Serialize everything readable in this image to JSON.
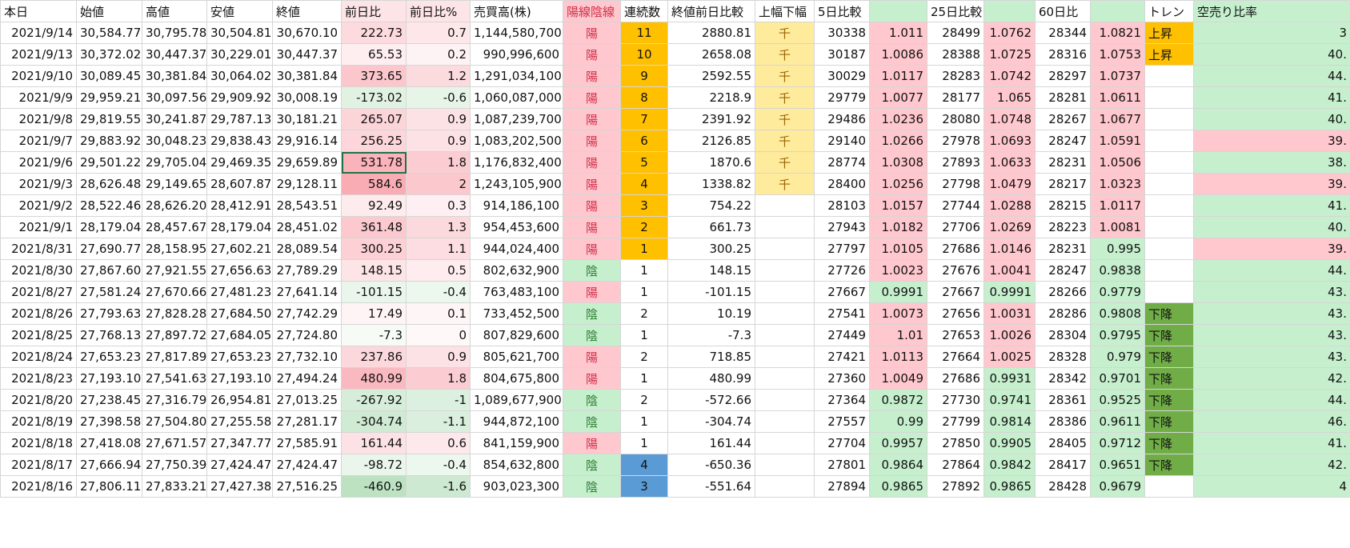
{
  "table": {
    "header": [
      "本日",
      "始値",
      "高値",
      "安値",
      "終値",
      "前日比",
      "前日比%",
      "売買高(株)",
      "陽線陰線",
      "連続数",
      "終値前日比較",
      "上幅下幅",
      "5日比較",
      null,
      "25日比較",
      null,
      "60日比",
      null,
      "トレン",
      "空売り比率"
    ],
    "rows": [
      [
        "2021/9/14",
        "30,584.77",
        "30,795.78",
        "30,504.81",
        "30,670.10",
        "222.73",
        "0.7",
        "1,144,580,700",
        "陽",
        "11",
        "2880.81",
        "千",
        "30338",
        "1.011",
        "28499",
        "1.0762",
        "28344",
        "1.0821",
        "上昇",
        "3"
      ],
      [
        "2021/9/13",
        "30,372.02",
        "30,447.37",
        "30,229.01",
        "30,447.37",
        "65.53",
        "0.2",
        "990,996,600",
        "陽",
        "10",
        "2658.08",
        "千",
        "30187",
        "1.0086",
        "28388",
        "1.0725",
        "28316",
        "1.0753",
        "上昇",
        "40."
      ],
      [
        "2021/9/10",
        "30,089.45",
        "30,381.84",
        "30,064.02",
        "30,381.84",
        "373.65",
        "1.2",
        "1,291,034,100",
        "陽",
        "9",
        "2592.55",
        "千",
        "30029",
        "1.0117",
        "28283",
        "1.0742",
        "28297",
        "1.0737",
        null,
        "44."
      ],
      [
        "2021/9/9",
        "29,959.21",
        "30,097.56",
        "29,909.92",
        "30,008.19",
        "-173.02",
        "-0.6",
        "1,060,087,000",
        "陽",
        "8",
        "2218.9",
        "千",
        "29779",
        "1.0077",
        "28177",
        "1.065",
        "28281",
        "1.0611",
        null,
        "41."
      ],
      [
        "2021/9/8",
        "29,819.55",
        "30,241.87",
        "29,787.13",
        "30,181.21",
        "265.07",
        "0.9",
        "1,087,239,700",
        "陽",
        "7",
        "2391.92",
        "千",
        "29486",
        "1.0236",
        "28080",
        "1.0748",
        "28267",
        "1.0677",
        null,
        "40."
      ],
      [
        "2021/9/7",
        "29,883.92",
        "30,048.23",
        "29,838.43",
        "29,916.14",
        "256.25",
        "0.9",
        "1,083,202,500",
        "陽",
        "6",
        "2126.85",
        "千",
        "29140",
        "1.0266",
        "27978",
        "1.0693",
        "28247",
        "1.0591",
        null,
        "39."
      ],
      [
        "2021/9/6",
        "29,501.22",
        "29,705.04",
        "29,469.35",
        "29,659.89",
        "531.78",
        "1.8",
        "1,176,832,400",
        "陽",
        "5",
        "1870.6",
        "千",
        "28774",
        "1.0308",
        "27893",
        "1.0633",
        "28231",
        "1.0506",
        null,
        "38."
      ],
      [
        "2021/9/3",
        "28,626.48",
        "29,149.65",
        "28,607.87",
        "29,128.11",
        "584.6",
        "2",
        "1,243,105,900",
        "陽",
        "4",
        "1338.82",
        "千",
        "28400",
        "1.0256",
        "27798",
        "1.0479",
        "28217",
        "1.0323",
        null,
        "39."
      ],
      [
        "2021/9/2",
        "28,522.46",
        "28,626.20",
        "28,412.91",
        "28,543.51",
        "92.49",
        "0.3",
        "914,186,100",
        "陽",
        "3",
        "754.22",
        null,
        "28103",
        "1.0157",
        "27744",
        "1.0288",
        "28215",
        "1.0117",
        null,
        "41."
      ],
      [
        "2021/9/1",
        "28,179.04",
        "28,457.67",
        "28,179.04",
        "28,451.02",
        "361.48",
        "1.3",
        "954,453,600",
        "陽",
        "2",
        "661.73",
        null,
        "27943",
        "1.0182",
        "27706",
        "1.0269",
        "28223",
        "1.0081",
        null,
        "40."
      ],
      [
        "2021/8/31",
        "27,690.77",
        "28,158.95",
        "27,602.21",
        "28,089.54",
        "300.25",
        "1.1",
        "944,024,400",
        "陽",
        "1",
        "300.25",
        null,
        "27797",
        "1.0105",
        "27686",
        "1.0146",
        "28231",
        "0.995",
        null,
        "39."
      ],
      [
        "2021/8/30",
        "27,867.60",
        "27,921.55",
        "27,656.63",
        "27,789.29",
        "148.15",
        "0.5",
        "802,632,900",
        "陰",
        "1",
        "148.15",
        null,
        "27726",
        "1.0023",
        "27676",
        "1.0041",
        "28247",
        "0.9838",
        null,
        "44."
      ],
      [
        "2021/8/27",
        "27,581.24",
        "27,670.66",
        "27,481.23",
        "27,641.14",
        "-101.15",
        "-0.4",
        "763,483,100",
        "陽",
        "1",
        "-101.15",
        null,
        "27667",
        "0.9991",
        "27667",
        "0.9991",
        "28266",
        "0.9779",
        null,
        "43."
      ],
      [
        "2021/8/26",
        "27,793.63",
        "27,828.28",
        "27,684.50",
        "27,742.29",
        "17.49",
        "0.1",
        "733,452,500",
        "陰",
        "2",
        "10.19",
        null,
        "27541",
        "1.0073",
        "27656",
        "1.0031",
        "28286",
        "0.9808",
        "下降",
        "43."
      ],
      [
        "2021/8/25",
        "27,768.13",
        "27,897.72",
        "27,684.05",
        "27,724.80",
        "-7.3",
        "0",
        "807,829,600",
        "陰",
        "1",
        "-7.3",
        null,
        "27449",
        "1.01",
        "27653",
        "1.0026",
        "28304",
        "0.9795",
        "下降",
        "43."
      ],
      [
        "2021/8/24",
        "27,653.23",
        "27,817.89",
        "27,653.23",
        "27,732.10",
        "237.86",
        "0.9",
        "805,621,700",
        "陽",
        "2",
        "718.85",
        null,
        "27421",
        "1.0113",
        "27664",
        "1.0025",
        "28328",
        "0.979",
        "下降",
        "43."
      ],
      [
        "2021/8/23",
        "27,193.10",
        "27,541.63",
        "27,193.10",
        "27,494.24",
        "480.99",
        "1.8",
        "804,675,800",
        "陽",
        "1",
        "480.99",
        null,
        "27360",
        "1.0049",
        "27686",
        "0.9931",
        "28342",
        "0.9701",
        "下降",
        "42."
      ],
      [
        "2021/8/20",
        "27,238.45",
        "27,316.79",
        "26,954.81",
        "27,013.25",
        "-267.92",
        "-1",
        "1,089,677,900",
        "陰",
        "2",
        "-572.66",
        null,
        "27364",
        "0.9872",
        "27730",
        "0.9741",
        "28361",
        "0.9525",
        "下降",
        "44."
      ],
      [
        "2021/8/19",
        "27,398.58",
        "27,504.80",
        "27,255.58",
        "27,281.17",
        "-304.74",
        "-1.1",
        "944,872,100",
        "陰",
        "1",
        "-304.74",
        null,
        "27557",
        "0.99",
        "27799",
        "0.9814",
        "28386",
        "0.9611",
        "下降",
        "46."
      ],
      [
        "2021/8/18",
        "27,418.08",
        "27,671.57",
        "27,347.77",
        "27,585.91",
        "161.44",
        "0.6",
        "841,159,900",
        "陽",
        "1",
        "161.44",
        null,
        "27704",
        "0.9957",
        "27850",
        "0.9905",
        "28405",
        "0.9712",
        "下降",
        "41."
      ],
      [
        "2021/8/17",
        "27,666.94",
        "27,750.39",
        "27,424.47",
        "27,424.47",
        "-98.72",
        "-0.4",
        "854,632,800",
        "陰",
        "4",
        "-650.36",
        null,
        "27801",
        "0.9864",
        "27864",
        "0.9842",
        "28417",
        "0.9651",
        "下降",
        "42."
      ],
      [
        "2021/8/16",
        "27,806.11",
        "27,833.21",
        "27,427.38",
        "27,516.25",
        "-460.9",
        "-1.6",
        "903,023,300",
        "陰",
        "3",
        "-551.64",
        null,
        "27894",
        "0.9865",
        "27892",
        "0.9865",
        "28428",
        "0.9679",
        null,
        "4"
      ]
    ]
  }
}
